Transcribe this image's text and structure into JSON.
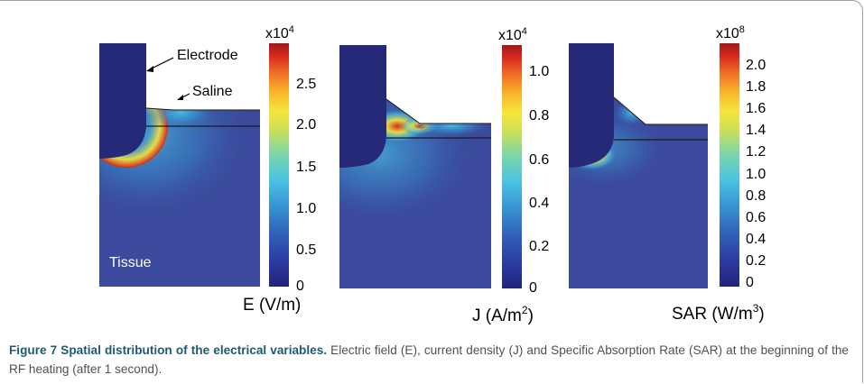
{
  "figure": {
    "panels": [
      {
        "quantity_label": "E (V/m)",
        "unit_sup": "",
        "multiplier": "x10",
        "multiplier_exp": "4",
        "ticks": [
          "2.5",
          "2.0",
          "1.5",
          "1.0",
          "0.5",
          "0"
        ],
        "annotations": {
          "electrode": "Electrode",
          "saline": "Saline",
          "tissue": "Tissue"
        }
      },
      {
        "quantity_label": "J (A/m",
        "unit_sup": "2",
        "unit_close": ")",
        "multiplier": "x10",
        "multiplier_exp": "4",
        "ticks": [
          "1.0",
          "0.8",
          "0.6",
          "0.4",
          "0.2",
          "0"
        ]
      },
      {
        "quantity_label": "SAR (W/m",
        "unit_sup": "3",
        "unit_close": ")",
        "multiplier": "x10",
        "multiplier_exp": "8",
        "ticks": [
          "2.0",
          "1.8",
          "1.6",
          "1.4",
          "1.2",
          "1.0",
          "0.8",
          "0.6",
          "0.4",
          "0.2",
          "0"
        ]
      }
    ],
    "colormap": [
      "#22247a",
      "#2b3aa0",
      "#3161b8",
      "#3794d2",
      "#4bc3e3",
      "#7fd6a6",
      "#c9df5a",
      "#f5e63a",
      "#f8b52c",
      "#ef6d25",
      "#d6281e",
      "#9e1a1c"
    ],
    "colors": {
      "domain_bg": "#3b4a9c",
      "electrode": "#262977",
      "outline": "#1a1a1a"
    }
  },
  "caption": {
    "title": "Figure 7 Spatial distribution of the electrical variables.",
    "text": " Electric field (E), current density (J) and Specific Absorption Rate (SAR) at the beginning of the RF heating (after 1 second)."
  }
}
